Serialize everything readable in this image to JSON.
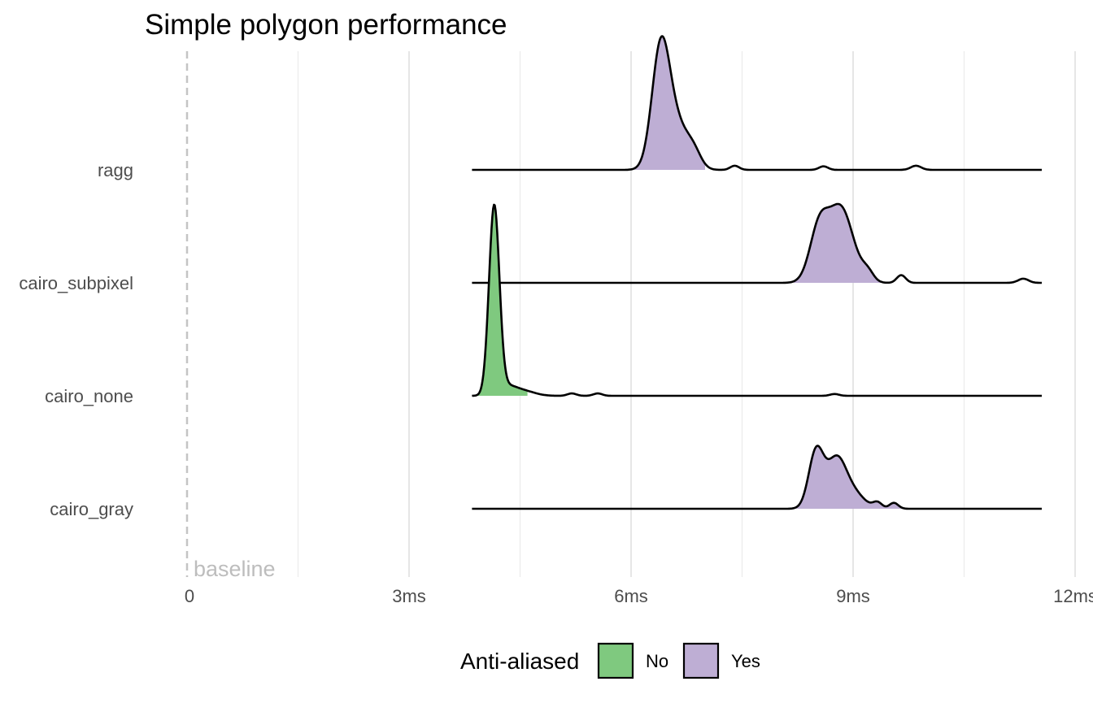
{
  "chart_data": {
    "type": "ridgeline density",
    "title": "Simple polygon performance",
    "xlabel": "",
    "ylabel": "",
    "x_unit": "ms",
    "xlim": [
      0,
      12
    ],
    "x_ticks": [
      0,
      3,
      6,
      9,
      12
    ],
    "x_tick_labels": [
      "0",
      "3ms",
      "6ms",
      "9ms",
      "12ms"
    ],
    "x_minor_ticks": [
      1.5,
      4.5,
      7.5,
      10.5
    ],
    "x_range_drawn": [
      3.85,
      11.55
    ],
    "grid": true,
    "categories": [
      "ragg",
      "cairo_subpixel",
      "cairo_none",
      "cairo_gray"
    ],
    "reference_line": {
      "x": 0,
      "label": "baseline",
      "style": "dashed"
    },
    "legend": {
      "title": "Anti-aliased",
      "position": "bottom",
      "entries": [
        {
          "label": "No",
          "color": "#7fc97f"
        },
        {
          "label": "Yes",
          "color": "#beaed4"
        }
      ]
    },
    "series": [
      {
        "category": "ragg",
        "anti_aliased": "Yes",
        "color": "#beaed4",
        "fill_range": [
          6.05,
          7.0
        ],
        "peaks": [
          {
            "x": 6.4,
            "h": 1.0,
            "w": 0.12
          },
          {
            "x": 6.62,
            "h": 0.36,
            "w": 0.15
          },
          {
            "x": 6.85,
            "h": 0.12,
            "w": 0.1
          },
          {
            "x": 7.4,
            "h": 0.035,
            "w": 0.06
          },
          {
            "x": 8.6,
            "h": 0.03,
            "w": 0.06
          },
          {
            "x": 9.85,
            "h": 0.035,
            "w": 0.07
          }
        ]
      },
      {
        "category": "cairo_subpixel",
        "anti_aliased": "Yes",
        "color": "#beaed4",
        "fill_range": [
          8.2,
          9.5
        ],
        "peaks": [
          {
            "x": 8.55,
            "h": 0.5,
            "w": 0.13
          },
          {
            "x": 8.82,
            "h": 0.55,
            "w": 0.14
          },
          {
            "x": 9.0,
            "h": 0.15,
            "w": 0.13
          },
          {
            "x": 9.2,
            "h": 0.08,
            "w": 0.08
          },
          {
            "x": 9.65,
            "h": 0.065,
            "w": 0.06
          },
          {
            "x": 11.3,
            "h": 0.035,
            "w": 0.07
          }
        ],
        "extra": [
          {
            "category_offset": "cairo_none",
            "x": 4.15,
            "h": 0.75,
            "w": 0.07,
            "color": "#7fc97f"
          }
        ]
      },
      {
        "category": "cairo_none",
        "anti_aliased": "No",
        "color": "#7fc97f",
        "fill_range": [
          3.85,
          4.6
        ],
        "peaks": [
          {
            "x": 4.15,
            "h": 1.6,
            "w": 0.07
          },
          {
            "x": 4.33,
            "h": 0.07,
            "w": 0.12
          },
          {
            "x": 4.55,
            "h": 0.04,
            "w": 0.15
          },
          {
            "x": 5.2,
            "h": 0.02,
            "w": 0.06
          },
          {
            "x": 5.55,
            "h": 0.02,
            "w": 0.06
          },
          {
            "x": 8.75,
            "h": 0.015,
            "w": 0.06
          }
        ]
      },
      {
        "category": "cairo_gray",
        "anti_aliased": "Yes",
        "color": "#beaed4",
        "fill_range": [
          8.2,
          9.7
        ],
        "peaks": [
          {
            "x": 8.5,
            "h": 0.48,
            "w": 0.1
          },
          {
            "x": 8.77,
            "h": 0.4,
            "w": 0.13
          },
          {
            "x": 9.0,
            "h": 0.13,
            "w": 0.15
          },
          {
            "x": 9.33,
            "h": 0.05,
            "w": 0.06
          },
          {
            "x": 9.55,
            "h": 0.05,
            "w": 0.06
          }
        ]
      }
    ]
  }
}
